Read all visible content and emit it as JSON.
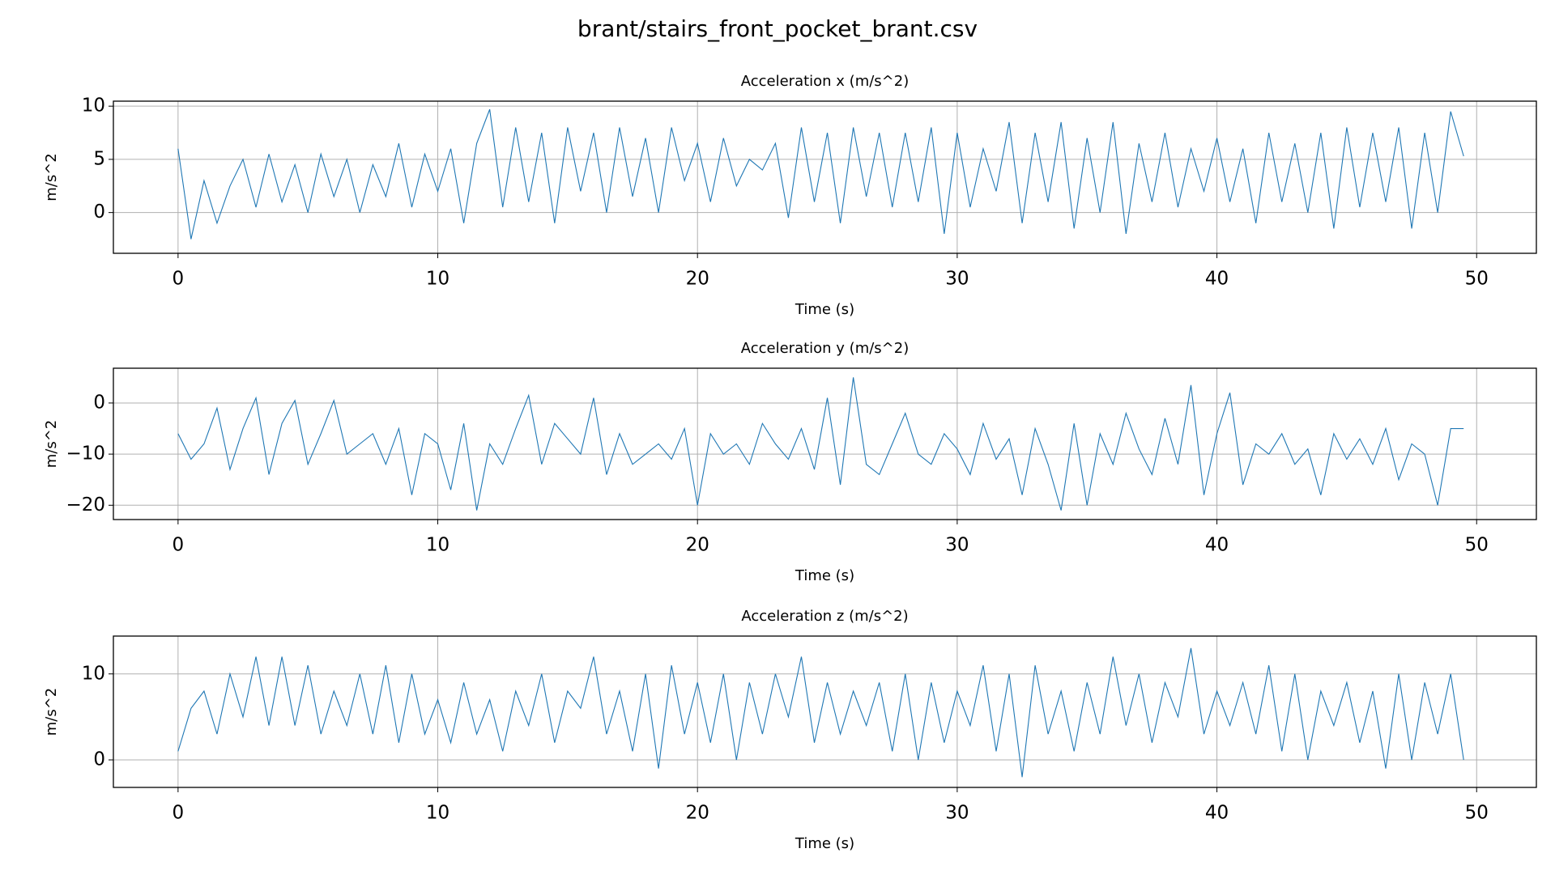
{
  "title": "brant/stairs_front_pocket_brant.csv",
  "chart_data": [
    {
      "type": "line",
      "title": "Acceleration x (m/s^2)",
      "xlabel": "Time (s)",
      "ylabel": "m/s^2",
      "color": "#1f77b4",
      "grid": true,
      "xlim": [
        -2.49,
        52.3
      ],
      "ylim": [
        -3.83,
        10.47
      ],
      "xticks": [
        0,
        10,
        20,
        30,
        40,
        50
      ],
      "yticks": [
        0,
        5,
        10
      ],
      "x": [
        0,
        0.5,
        1,
        1.5,
        2,
        2.5,
        3,
        3.5,
        4,
        4.5,
        5,
        5.5,
        6,
        6.5,
        7,
        7.5,
        8,
        8.5,
        9,
        9.5,
        10,
        10.5,
        11,
        11.5,
        12,
        12.5,
        13,
        13.5,
        14,
        14.5,
        15,
        15.5,
        16,
        16.5,
        17,
        17.5,
        18,
        18.5,
        19,
        19.5,
        20,
        20.5,
        21,
        21.5,
        22,
        22.5,
        23,
        23.5,
        24,
        24.5,
        25,
        25.5,
        26,
        26.5,
        27,
        27.5,
        28,
        28.5,
        29,
        29.5,
        30,
        30.5,
        31,
        31.5,
        32,
        32.5,
        33,
        33.5,
        34,
        34.5,
        35,
        35.5,
        36,
        36.5,
        37,
        37.5,
        38,
        38.5,
        39,
        39.5,
        40,
        40.5,
        41,
        41.5,
        42,
        42.5,
        43,
        43.5,
        44,
        44.5,
        45,
        45.5,
        46,
        46.5,
        47,
        47.5,
        48,
        48.5,
        49,
        49.5
      ],
      "values": [
        6,
        -2.5,
        3,
        -1,
        2.5,
        5,
        0.5,
        5.5,
        1,
        4.5,
        0,
        5.5,
        1.5,
        5,
        0,
        4.5,
        1.5,
        6.5,
        0.5,
        5.5,
        2,
        6,
        -1,
        6.5,
        9.7,
        0.5,
        8,
        1,
        7.5,
        -1,
        8,
        2,
        7.5,
        0,
        8,
        1.5,
        7,
        0,
        8,
        3,
        6.5,
        1,
        7,
        2.5,
        5,
        4,
        6.5,
        -0.5,
        8,
        1,
        7.5,
        -1,
        8,
        1.5,
        7.5,
        0.5,
        7.5,
        1,
        8,
        -2,
        7.5,
        0.5,
        6,
        2,
        8.5,
        -1,
        7.5,
        1,
        8.5,
        -1.5,
        7,
        0,
        8.5,
        -2,
        6.5,
        1,
        7.5,
        0.5,
        6,
        2,
        7,
        1,
        6,
        -1,
        7.5,
        1,
        6.5,
        0,
        7.5,
        -1.5,
        8,
        0.5,
        7.5,
        1,
        8,
        -1.5,
        7.5,
        0,
        9.5,
        5.3
      ]
    },
    {
      "type": "line",
      "title": "Acceleration y (m/s^2)",
      "xlabel": "Time (s)",
      "ylabel": "m/s^2",
      "color": "#1f77b4",
      "grid": true,
      "xlim": [
        -2.49,
        52.3
      ],
      "ylim": [
        -22.8,
        6.8
      ],
      "xticks": [
        0,
        10,
        20,
        30,
        40,
        50
      ],
      "yticks": [
        {
          "value": -20,
          "label": "−20"
        },
        {
          "value": -10,
          "label": "−10"
        },
        0
      ],
      "x": [
        0,
        0.5,
        1,
        1.5,
        2,
        2.5,
        3,
        3.5,
        4,
        4.5,
        5,
        5.5,
        6,
        6.5,
        7,
        7.5,
        8,
        8.5,
        9,
        9.5,
        10,
        10.5,
        11,
        11.5,
        12,
        12.5,
        13,
        13.5,
        14,
        14.5,
        15,
        15.5,
        16,
        16.5,
        17,
        17.5,
        18,
        18.5,
        19,
        19.5,
        20,
        20.5,
        21,
        21.5,
        22,
        22.5,
        23,
        23.5,
        24,
        24.5,
        25,
        25.5,
        26,
        26.5,
        27,
        27.5,
        28,
        28.5,
        29,
        29.5,
        30,
        30.5,
        31,
        31.5,
        32,
        32.5,
        33,
        33.5,
        34,
        34.5,
        35,
        35.5,
        36,
        36.5,
        37,
        37.5,
        38,
        38.5,
        39,
        39.5,
        40,
        40.5,
        41,
        41.5,
        42,
        42.5,
        43,
        43.5,
        44,
        44.5,
        45,
        45.5,
        46,
        46.5,
        47,
        47.5,
        48,
        48.5,
        49,
        49.5
      ],
      "values": [
        -6,
        -11,
        -8,
        -1,
        -13,
        -5,
        1,
        -14,
        -4,
        0.5,
        -12,
        -6,
        0.5,
        -10,
        -8,
        -6,
        -12,
        -5,
        -18,
        -6,
        -8,
        -17,
        -4,
        -21,
        -8,
        -12,
        -5,
        1.5,
        -12,
        -4,
        -7,
        -10,
        1,
        -14,
        -6,
        -12,
        -10,
        -8,
        -11,
        -5,
        -20,
        -6,
        -10,
        -8,
        -12,
        -4,
        -8,
        -11,
        -5,
        -13,
        1,
        -16,
        5,
        -12,
        -14,
        -8,
        -2,
        -10,
        -12,
        -6,
        -9,
        -14,
        -4,
        -11,
        -7,
        -18,
        -5,
        -12,
        -21,
        -4,
        -20,
        -6,
        -12,
        -2,
        -9,
        -14,
        -3,
        -12,
        3.5,
        -18,
        -6,
        2,
        -16,
        -8,
        -10,
        -6,
        -12,
        -9,
        -18,
        -6,
        -11,
        -7,
        -12,
        -5,
        -15,
        -8,
        -10,
        -20,
        -5,
        -5
      ]
    },
    {
      "type": "line",
      "title": "Acceleration z (m/s^2)",
      "xlabel": "Time (s)",
      "ylabel": "m/s^2",
      "color": "#1f77b4",
      "grid": true,
      "xlim": [
        -2.49,
        52.3
      ],
      "ylim": [
        -3.2,
        14.4
      ],
      "xticks": [
        0,
        10,
        20,
        30,
        40,
        50
      ],
      "yticks": [
        0,
        10
      ],
      "x": [
        0,
        0.5,
        1,
        1.5,
        2,
        2.5,
        3,
        3.5,
        4,
        4.5,
        5,
        5.5,
        6,
        6.5,
        7,
        7.5,
        8,
        8.5,
        9,
        9.5,
        10,
        10.5,
        11,
        11.5,
        12,
        12.5,
        13,
        13.5,
        14,
        14.5,
        15,
        15.5,
        16,
        16.5,
        17,
        17.5,
        18,
        18.5,
        19,
        19.5,
        20,
        20.5,
        21,
        21.5,
        22,
        22.5,
        23,
        23.5,
        24,
        24.5,
        25,
        25.5,
        26,
        26.5,
        27,
        27.5,
        28,
        28.5,
        29,
        29.5,
        30,
        30.5,
        31,
        31.5,
        32,
        32.5,
        33,
        33.5,
        34,
        34.5,
        35,
        35.5,
        36,
        36.5,
        37,
        37.5,
        38,
        38.5,
        39,
        39.5,
        40,
        40.5,
        41,
        41.5,
        42,
        42.5,
        43,
        43.5,
        44,
        44.5,
        45,
        45.5,
        46,
        46.5,
        47,
        47.5,
        48,
        48.5,
        49,
        49.5
      ],
      "values": [
        1,
        6,
        8,
        3,
        10,
        5,
        12,
        4,
        12,
        4,
        11,
        3,
        8,
        4,
        10,
        3,
        11,
        2,
        10,
        3,
        7,
        2,
        9,
        3,
        7,
        1,
        8,
        4,
        10,
        2,
        8,
        6,
        12,
        3,
        8,
        1,
        10,
        -1,
        11,
        3,
        9,
        2,
        10,
        0,
        9,
        3,
        10,
        5,
        12,
        2,
        9,
        3,
        8,
        4,
        9,
        1,
        10,
        0,
        9,
        2,
        8,
        4,
        11,
        1,
        10,
        -2,
        11,
        3,
        8,
        1,
        9,
        3,
        12,
        4,
        10,
        2,
        9,
        5,
        13,
        3,
        8,
        4,
        9,
        3,
        11,
        1,
        10,
        0,
        8,
        4,
        9,
        2,
        8,
        -1,
        10,
        0,
        9,
        3,
        10,
        0
      ]
    }
  ]
}
